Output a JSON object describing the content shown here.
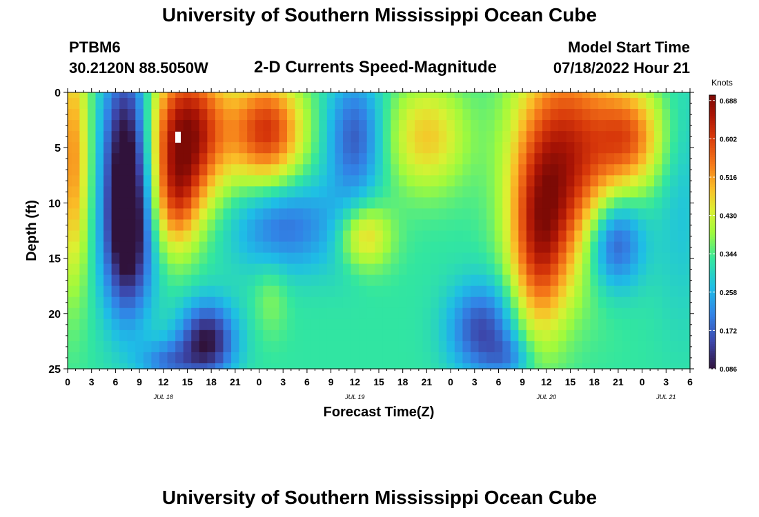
{
  "header": {
    "title": "University of Southern Mississippi Ocean Cube",
    "station": "PTBM6",
    "coordinates": "30.2120N  88.5050W",
    "plot_title": "2-D Currents Speed-Magnitude",
    "model_start_label": "Model Start Time",
    "model_start_value": "07/18/2022 Hour 21"
  },
  "footer": {
    "title": "University of Southern Mississippi Ocean Cube"
  },
  "chart_data": {
    "type": "heatmap",
    "title": "2-D Currents Speed-Magnitude",
    "xlabel": "Forecast Time(Z)",
    "ylabel": "Depth (ft)",
    "colorbar_label": "Knots",
    "x_unit": "forecast hours",
    "xlim": [
      0,
      78
    ],
    "ylim": [
      0,
      25
    ],
    "y_inverted": true,
    "x_ticks": [
      0,
      3,
      6,
      9,
      12,
      15,
      18,
      21,
      24,
      27,
      30,
      33,
      36,
      39,
      42,
      45,
      48,
      51,
      54,
      57,
      60,
      63,
      66,
      69,
      72,
      75,
      78
    ],
    "x_tick_labels": [
      "0",
      "3",
      "6",
      "9",
      "12",
      "15",
      "18",
      "21",
      "0",
      "3",
      "6",
      "9",
      "12",
      "15",
      "18",
      "21",
      "0",
      "3",
      "6",
      "9",
      "12",
      "15",
      "18",
      "21",
      "0",
      "3",
      "6"
    ],
    "y_ticks": [
      0,
      5,
      10,
      15,
      20,
      25
    ],
    "y_tick_labels": [
      "0",
      "5",
      "10",
      "15",
      "20",
      "25"
    ],
    "date_labels": [
      {
        "label": "JUL 18",
        "x": 12
      },
      {
        "label": "JUL 19",
        "x": 36
      },
      {
        "label": "JUL 20",
        "x": 60
      },
      {
        "label": "JUL 21",
        "x": 75
      }
    ],
    "colorbar_ticks": [
      0.086,
      0.172,
      0.258,
      0.344,
      0.43,
      0.516,
      0.602,
      0.688
    ],
    "colorbar_tick_labels": [
      "0.086",
      "0.172",
      "0.258",
      "0.344",
      "0.430",
      "0.516",
      "0.602",
      "0.688"
    ],
    "value_range": [
      0.086,
      0.7
    ],
    "grid_resolution": {
      "nx": 79,
      "ny": 26
    },
    "field_model": {
      "background": 0.33,
      "components": [
        {
          "x": 0.5,
          "y": 6,
          "sx": 1.6,
          "sy": 8,
          "a": 0.2
        },
        {
          "x": 7.5,
          "y": 12.5,
          "sx": 2.2,
          "sy": 5.5,
          "a": -0.3
        },
        {
          "x": 7.5,
          "y": 3,
          "sx": 2.2,
          "sy": 5,
          "a": -0.2
        },
        {
          "x": 15,
          "y": 3.5,
          "sx": 3.5,
          "sy": 4.5,
          "a": 0.35
        },
        {
          "x": 13.5,
          "y": 10,
          "sx": 2.2,
          "sy": 3.5,
          "a": 0.18
        },
        {
          "x": 17.5,
          "y": 22.5,
          "sx": 2.5,
          "sy": 2.5,
          "a": -0.24
        },
        {
          "x": 12.5,
          "y": 24.5,
          "sx": 2.5,
          "sy": 1.5,
          "a": -0.12
        },
        {
          "x": 25,
          "y": 3.5,
          "sx": 3.2,
          "sy": 3.5,
          "a": 0.28
        },
        {
          "x": 25.5,
          "y": 18.5,
          "sx": 1.5,
          "sy": 2.5,
          "a": 0.05
        },
        {
          "x": 27,
          "y": 12,
          "sx": 4.5,
          "sy": 3,
          "a": -0.14
        },
        {
          "x": 35.5,
          "y": 13,
          "sx": 2.5,
          "sy": 2.5,
          "a": -0.16
        },
        {
          "x": 36,
          "y": 4,
          "sx": 2.5,
          "sy": 4,
          "a": -0.16
        },
        {
          "x": 36.5,
          "y": 13,
          "sx": 2.5,
          "sy": 2.2,
          "a": 0.28
        },
        {
          "x": 45,
          "y": 4,
          "sx": 3.5,
          "sy": 3.5,
          "a": 0.15
        },
        {
          "x": 52,
          "y": 21.5,
          "sx": 3,
          "sy": 3,
          "a": -0.18
        },
        {
          "x": 62.5,
          "y": 6,
          "sx": 4.5,
          "sy": 7,
          "a": 0.3
        },
        {
          "x": 59,
          "y": 14,
          "sx": 2.5,
          "sy": 6,
          "a": 0.22
        },
        {
          "x": 70.5,
          "y": 4,
          "sx": 3,
          "sy": 3.2,
          "a": 0.2
        },
        {
          "x": 68.5,
          "y": 13.5,
          "sx": 2.5,
          "sy": 3,
          "a": -0.2
        },
        {
          "x": 77,
          "y": 10,
          "sx": 2.5,
          "sy": 8,
          "a": -0.05
        },
        {
          "x": 55.5,
          "y": 24,
          "sx": 2,
          "sy": 1.5,
          "a": -0.08
        }
      ]
    }
  }
}
